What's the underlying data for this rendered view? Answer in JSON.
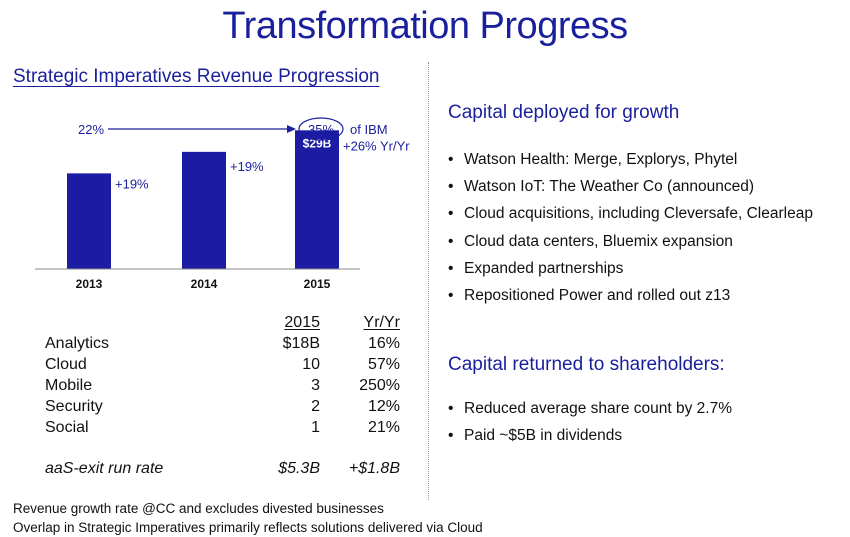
{
  "title": "Transformation Progress",
  "left": {
    "heading": "Strategic Imperatives Revenue Progression",
    "table": {
      "col_year": "2015",
      "col_yoy": "Yr/Yr",
      "rows": [
        {
          "segment": "Analytics",
          "value": "$18B",
          "yoy": "16%"
        },
        {
          "segment": "Cloud",
          "value": "10",
          "yoy": "57%"
        },
        {
          "segment": "Mobile",
          "value": "3",
          "yoy": "250%"
        },
        {
          "segment": "Security",
          "value": "2",
          "yoy": "12%"
        },
        {
          "segment": "Social",
          "value": "1",
          "yoy": "21%"
        }
      ],
      "run_rate": {
        "label": "aaS-exit run rate",
        "value": "$5.3B",
        "yoy": "+$1.8B"
      }
    },
    "footnotes": [
      "Revenue growth rate @CC and excludes divested businesses",
      "Overlap in Strategic Imperatives primarily reflects solutions delivered via Cloud"
    ]
  },
  "right": {
    "capital_growth": {
      "heading": "Capital deployed for growth",
      "items": [
        "Watson Health: Merge, Explorys, Phytel",
        "Watson IoT: The Weather Co (announced)",
        "Cloud acquisitions, including Cleversafe, Clearleap",
        "Cloud data centers, Bluemix expansion",
        "Expanded partnerships",
        "Repositioned Power and rolled out z13"
      ]
    },
    "capital_returned": {
      "heading": "Capital returned to shareholders:",
      "items": [
        "Reduced average share count by 2.7%",
        "Paid ~$5B in dividends"
      ]
    }
  },
  "bullet_char": "•",
  "colors": {
    "accent": "#1a1f9c",
    "bar": "#1c1ba3"
  },
  "chart_data": {
    "type": "bar",
    "categories": [
      "2013",
      "2014",
      "2015"
    ],
    "values": [
      20,
      24.5,
      29
    ],
    "ylim": [
      0,
      32
    ],
    "value_labels": [
      "",
      "",
      "$29B"
    ],
    "growth_labels": [
      "+19%",
      "+19%",
      "+26% Yr/Yr"
    ],
    "share_start": "22%",
    "share_end": "35%",
    "share_suffix": "of IBM",
    "title": "",
    "xlabel": "",
    "ylabel": ""
  }
}
